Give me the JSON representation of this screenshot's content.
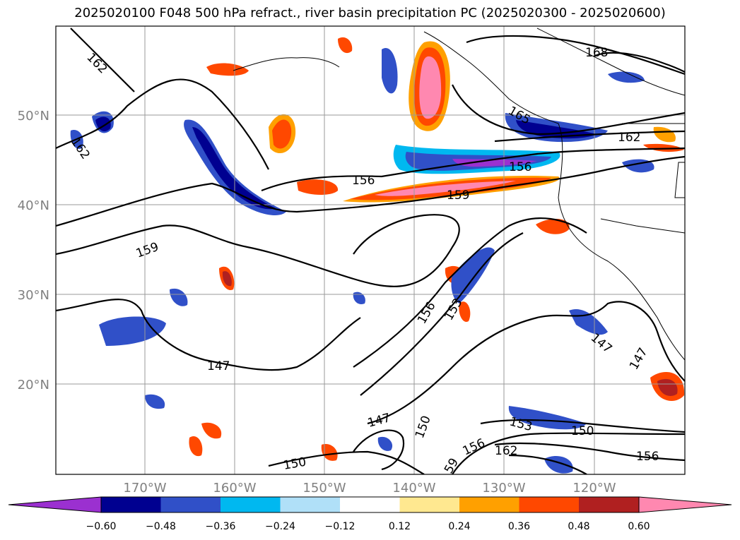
{
  "title": "2025020100 F048 500 hPa refract., river basin precipitation PC (2025020300 - 2025020600)",
  "lat_labels": [
    "50°N",
    "40°N",
    "30°N",
    "20°N"
  ],
  "lon_labels": [
    "170°W",
    "160°W",
    "150°W",
    "140°W",
    "130°W",
    "120°W"
  ],
  "contour_labels": [
    "162",
    "162",
    "168",
    "165",
    "162",
    "156",
    "156",
    "159",
    "159",
    "156",
    "153",
    "147",
    "147",
    "147",
    "147",
    "150",
    "150",
    "153",
    "156",
    "150",
    "162",
    "59",
    "156"
  ],
  "colorbar": {
    "ticks": [
      "−0.60",
      "−0.48",
      "−0.36",
      "−0.24",
      "−0.12",
      "0.12",
      "0.24",
      "0.36",
      "0.48",
      "0.60"
    ],
    "colors": [
      "#9b30d0",
      "#000090",
      "#3050c8",
      "#00b8f0",
      "#b0e0f8",
      "#ffffff",
      "#ffe890",
      "#ffa000",
      "#ff4800",
      "#b02020",
      "#ff88b0"
    ]
  }
}
